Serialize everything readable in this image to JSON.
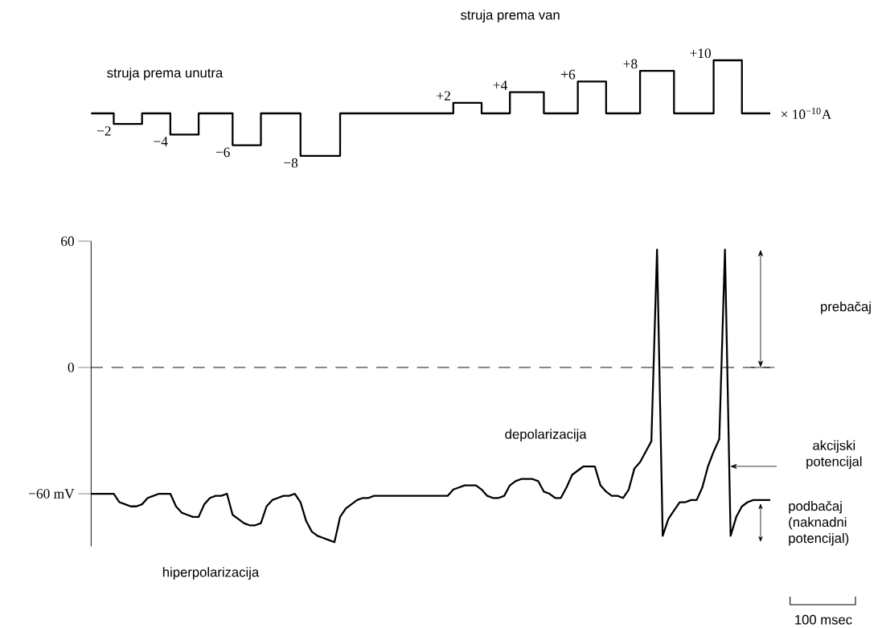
{
  "chart_data": [
    {
      "type": "step",
      "ylabel": "× 10$^{−10}$A",
      "annotations": [
        "struja prema unutra",
        "struja prema van"
      ],
      "categories": [
        null,
        null,
        null,
        null,
        null,
        null,
        null,
        null,
        null,
        null,
        null,
        null,
        null,
        null,
        null,
        null,
        null,
        null,
        null,
        null,
        null,
        null,
        null,
        null,
        null,
        null,
        null,
        null,
        null,
        null,
        null,
        null,
        null,
        null,
        null,
        null,
        null,
        null,
        null,
        null,
        null,
        null,
        null,
        null,
        null,
        null,
        null,
        null,
        null,
        null,
        null,
        null,
        null,
        null,
        null,
        null,
        null,
        null,
        null,
        null,
        null,
        null,
        null,
        null,
        null,
        null,
        null,
        null,
        null,
        null,
        null,
        null,
        null,
        null,
        null,
        null,
        null,
        null,
        null,
        null,
        null,
        null,
        null,
        null,
        null,
        null,
        null,
        null,
        null,
        null,
        null,
        null,
        null,
        null,
        null,
        null,
        null,
        null,
        null,
        null,
        null,
        null,
        null,
        null,
        null,
        null,
        null,
        null,
        null,
        null,
        null,
        null,
        null,
        null,
        null,
        null,
        null,
        null,
        null,
        null,
        null
      ],
      "series": [
        {
          "color": "#000000",
          "values": [
            0,
            0,
            0,
            0,
            -2,
            -2,
            -2,
            -2,
            -2,
            0,
            0,
            0,
            0,
            0,
            -4,
            -4,
            -4,
            -4,
            -4,
            0,
            0,
            0,
            0,
            0,
            0,
            -6,
            -6,
            -6,
            -6,
            -6,
            0,
            0,
            0,
            0,
            0,
            0,
            0,
            -8,
            -8,
            -8,
            -8,
            -8,
            -8,
            -8,
            0,
            0,
            0,
            0,
            0,
            0,
            0,
            0,
            0,
            0,
            0,
            0,
            0,
            0,
            0,
            0,
            0,
            0,
            0,
            0,
            2,
            2,
            2,
            2,
            2,
            0,
            0,
            0,
            0,
            0,
            4,
            4,
            4,
            4,
            4,
            4,
            0,
            0,
            0,
            0,
            0,
            0,
            6,
            6,
            6,
            6,
            6,
            0,
            0,
            0,
            0,
            0,
            0,
            8,
            8,
            8,
            8,
            8,
            8,
            0,
            0,
            0,
            0,
            0,
            0,
            0,
            10,
            10,
            10,
            10,
            10,
            0,
            0,
            0,
            0,
            0,
            0
          ],
          "value_labels": [
            null,
            null,
            null,
            null,
            "−2",
            null,
            null,
            null,
            null,
            null,
            null,
            null,
            null,
            null,
            "−4",
            null,
            null,
            null,
            null,
            null,
            null,
            null,
            null,
            null,
            null,
            "−6",
            null,
            null,
            null,
            null,
            null,
            null,
            null,
            null,
            null,
            null,
            null,
            "−8",
            null,
            null,
            null,
            null,
            null,
            null,
            null,
            null,
            null,
            null,
            null,
            null,
            null,
            null,
            null,
            null,
            null,
            null,
            null,
            null,
            null,
            null,
            null,
            null,
            null,
            null,
            "+2",
            null,
            null,
            null,
            null,
            null,
            null,
            null,
            null,
            null,
            "+4",
            null,
            null,
            null,
            null,
            null,
            null,
            null,
            null,
            null,
            null,
            null,
            "+6",
            null,
            null,
            null,
            null,
            null,
            null,
            null,
            null,
            null,
            null,
            "+8",
            null,
            null,
            null,
            null,
            null,
            null,
            null,
            null,
            null,
            null,
            null,
            null,
            "+10",
            null,
            null,
            null,
            null,
            null,
            null,
            null,
            null,
            null,
            null
          ]
        }
      ]
    },
    {
      "type": "line",
      "ylim": [
        -85,
        60
      ],
      "yticks": [
        60,
        0,
        {
          "value": -60,
          "label": "−60 mV"
        }
      ],
      "ref_lines": [
        {
          "axis": "y",
          "value": 0,
          "line_style": "dashed"
        }
      ],
      "annotations": [
        "hiperpolarizacija",
        "depolarizacija",
        "akcijski potencijal",
        "prebačaj",
        "podbačaj (naknadni potencijal)",
        "100 msec"
      ],
      "categories": [
        null,
        null,
        null,
        null,
        null,
        null,
        null,
        null,
        null,
        null,
        null,
        null,
        null,
        null,
        null,
        null,
        null,
        null,
        null,
        null,
        null,
        null,
        null,
        null,
        null,
        null,
        null,
        null,
        null,
        null,
        null,
        null,
        null,
        null,
        null,
        null,
        null,
        null,
        null,
        null,
        null,
        null,
        null,
        null,
        null,
        null,
        null,
        null,
        null,
        null,
        null,
        null,
        null,
        null,
        null,
        null,
        null,
        null,
        null,
        null,
        null,
        null,
        null,
        null,
        null,
        null,
        null,
        null,
        null,
        null,
        null,
        null,
        null,
        null,
        null,
        null,
        null,
        null,
        null,
        null,
        null,
        null,
        null,
        null,
        null,
        null,
        null,
        null,
        null,
        null,
        null,
        null,
        null,
        null,
        null,
        null,
        null,
        null,
        null,
        null,
        null,
        null,
        null,
        null,
        null,
        null,
        null,
        null,
        null,
        null,
        null,
        null,
        null,
        null,
        null,
        null,
        null,
        null,
        null,
        null,
        null
      ],
      "series": [
        {
          "color": "#000000",
          "values": [
            -60,
            -60,
            -60,
            -60,
            -60,
            -64,
            -65,
            -66,
            -66,
            -65,
            -62,
            -61,
            -60,
            -60,
            -60,
            -66,
            -69,
            -70,
            -71,
            -71,
            -65,
            -62,
            -61,
            -61,
            -60,
            -70,
            -72,
            -74,
            -75,
            -75,
            -74,
            -66,
            -63,
            -62,
            -61,
            -61,
            -60,
            -64,
            -73,
            -78,
            -80,
            -81,
            -82,
            -83,
            -71,
            -67,
            -65,
            -63,
            -62,
            -62,
            -61,
            -61,
            -61,
            -61,
            -61,
            -61,
            -61,
            -61,
            -61,
            -61,
            -61,
            -61,
            -61,
            -61,
            -58,
            -57,
            -56,
            -56,
            -56,
            -58,
            -61,
            -62,
            -62,
            -61,
            -56,
            -54,
            -53,
            -53,
            -53,
            -54,
            -59,
            -60,
            -62,
            -62,
            -57,
            -51,
            -49,
            -47,
            -47,
            -47,
            -56,
            -59,
            -61,
            -61,
            -62,
            -58,
            -48,
            -45,
            -40,
            -35,
            56,
            -80,
            -72,
            -68,
            -64,
            -64,
            -63,
            -63,
            -57,
            -47,
            -40,
            -34,
            56,
            -80,
            -71,
            -66,
            -64,
            -63,
            -63,
            -63,
            -63
          ]
        }
      ]
    }
  ]
}
